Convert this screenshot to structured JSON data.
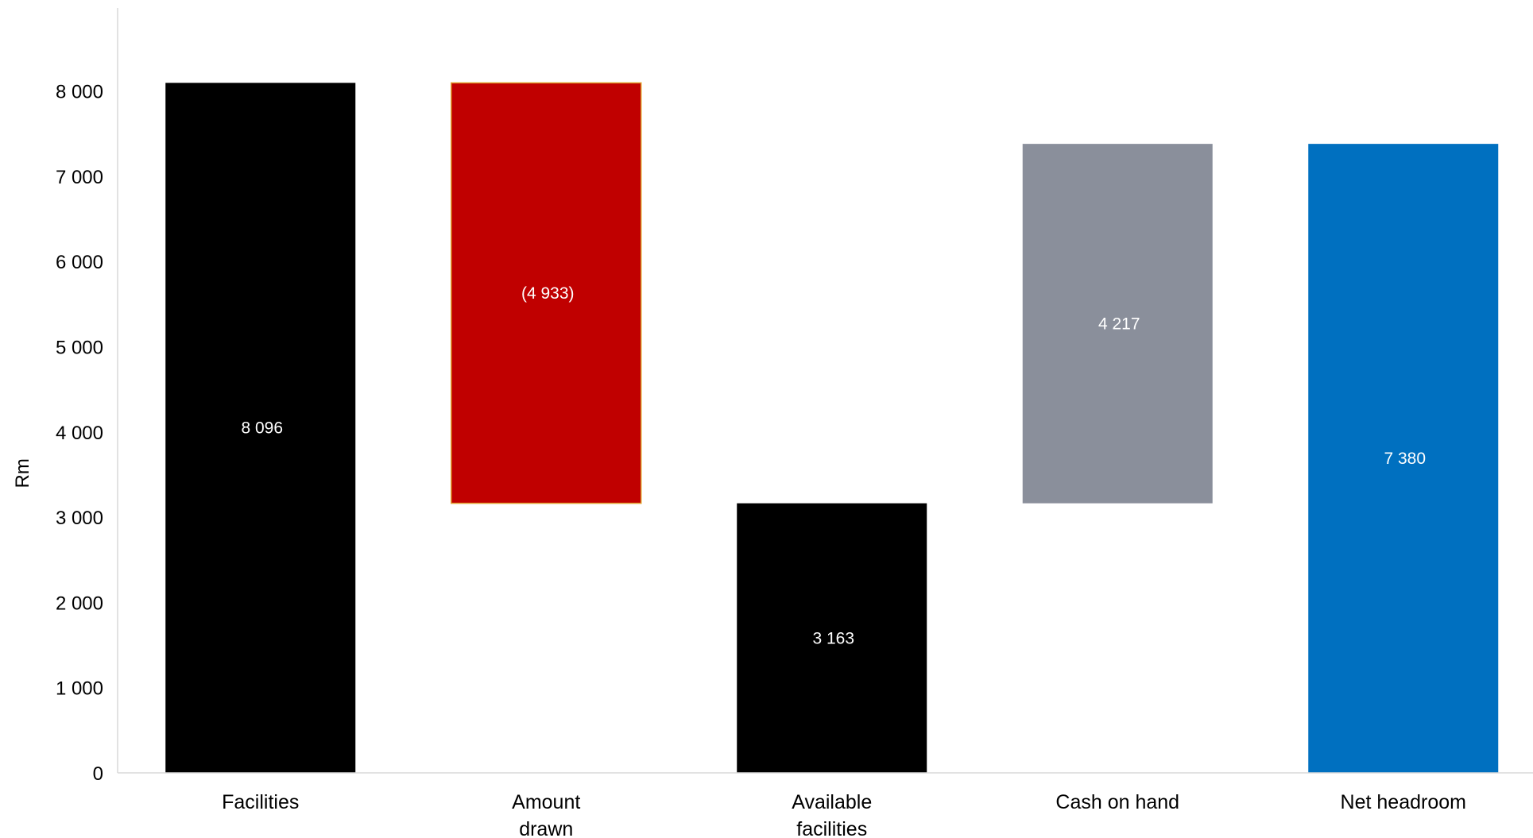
{
  "chart_data": {
    "type": "bar",
    "subtype": "waterfall",
    "title": "",
    "xlabel": "",
    "ylabel": "Rm",
    "ylim": [
      0,
      8900
    ],
    "yticks": [
      0,
      1000,
      2000,
      3000,
      4000,
      5000,
      6000,
      7000,
      8000
    ],
    "ytick_labels": [
      "0",
      "1 000",
      "2 000",
      "3 000",
      "4 000",
      "5 000",
      "6 000",
      "7 000",
      "8 000"
    ],
    "grid": false,
    "legend": "none",
    "categories": [
      [
        "Facilities"
      ],
      [
        "Amount",
        "drawn"
      ],
      [
        "Available",
        "facilities"
      ],
      [
        "Cash on hand"
      ],
      [
        "Net headroom"
      ]
    ],
    "bars": [
      {
        "category": "Facilities",
        "base": 0,
        "top": 8096,
        "value_label": "8 096",
        "color": "#000000",
        "stroke": "none"
      },
      {
        "category": "Amount drawn",
        "base": 3163,
        "top": 8096,
        "value_label": "(4 933)",
        "color": "#c00000",
        "stroke": "#e0a030"
      },
      {
        "category": "Available facilities",
        "base": 0,
        "top": 3163,
        "value_label": "3 163",
        "color": "#000000",
        "stroke": "none"
      },
      {
        "category": "Cash on hand",
        "base": 3163,
        "top": 7380,
        "value_label": "4 217",
        "color": "#8a8f9b",
        "stroke": "none"
      },
      {
        "category": "Net headroom",
        "base": 0,
        "top": 7380,
        "value_label": "7 380",
        "color": "#0070c0",
        "stroke": "none"
      }
    ],
    "axis_color": "#d9d9d9"
  }
}
